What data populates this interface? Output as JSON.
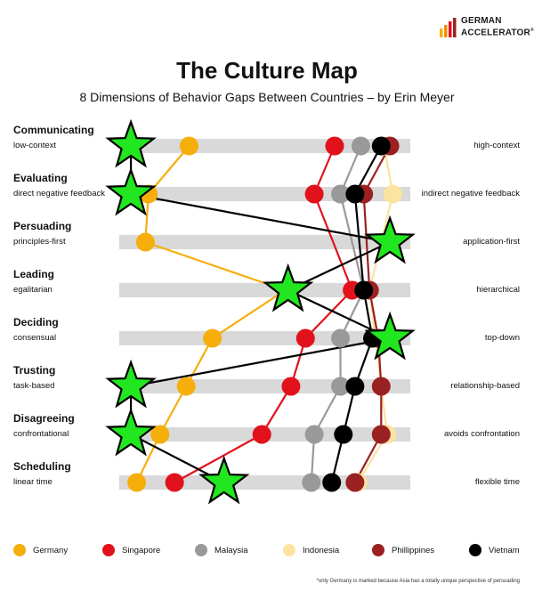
{
  "logo": {
    "line1": "GERMAN",
    "line2": "ACCELERATOR",
    "mark": "®"
  },
  "chart_data": {
    "type": "scatter",
    "title": "The Culture Map",
    "subtitle": "8 Dimensions of Behavior Gaps Between Countries – by Erin Meyer",
    "xlim": [
      0,
      100
    ],
    "dimensions": [
      {
        "name": "Communicating",
        "left": "low-context",
        "right": "high-context"
      },
      {
        "name": "Evaluating",
        "left": "direct negative feedback",
        "right": "indirect negative feedback"
      },
      {
        "name": "Persuading",
        "left": "principles-first",
        "right": "application-first"
      },
      {
        "name": "Leading",
        "left": "egalitarian",
        "right": "hierarchical"
      },
      {
        "name": "Deciding",
        "left": "consensual",
        "right": "top-down"
      },
      {
        "name": "Trusting",
        "left": "task-based",
        "right": "relationship-based"
      },
      {
        "name": "Disagreeing",
        "left": "confrontational",
        "right": "avoids confrontation"
      },
      {
        "name": "Scheduling",
        "left": "linear time",
        "right": "flexible time"
      }
    ],
    "series": [
      {
        "name": "Germany",
        "color": "#f6ae0b",
        "values": [
          24,
          10,
          9,
          57,
          32,
          23,
          14,
          6
        ]
      },
      {
        "name": "Singapore",
        "color": "#e1121b",
        "values": [
          74,
          67,
          null,
          80,
          64,
          59,
          49,
          19
        ]
      },
      {
        "name": "Malaysia",
        "color": "#999999",
        "values": [
          83,
          76,
          null,
          84,
          76,
          76,
          67,
          66
        ]
      },
      {
        "name": "Indonesia",
        "color": "#fbe3a0",
        "values": [
          91,
          94,
          null,
          86,
          88,
          90,
          92,
          82
        ]
      },
      {
        "name": "Phillippines",
        "color": "#9a2121",
        "values": [
          93,
          84,
          null,
          86,
          89,
          90,
          90,
          81
        ]
      },
      {
        "name": "Vietnam",
        "color": "#000000",
        "values": [
          90,
          81,
          null,
          84,
          87,
          81,
          77,
          73
        ]
      }
    ],
    "stars": {
      "description": "",
      "values": [
        4,
        4,
        93,
        58,
        93,
        4,
        4,
        36
      ]
    },
    "footnote": "*only Germany is marked because Asia has a totally unique perspective of persuading",
    "grid": false,
    "legend_position": "bottom"
  }
}
